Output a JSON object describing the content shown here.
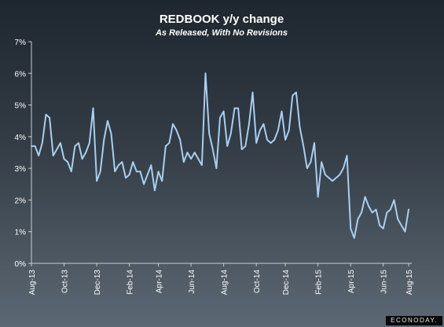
{
  "chart_data": {
    "type": "line",
    "title": "REDBOOK y/y change",
    "subtitle": "As Released, With No Revisions",
    "xlabel": "",
    "ylabel": "",
    "ylim": [
      0,
      7
    ],
    "y_ticks": [
      "0%",
      "1%",
      "2%",
      "3%",
      "4%",
      "5%",
      "6%",
      "7%"
    ],
    "x_ticks": [
      {
        "label": "Aug-13",
        "index": 0
      },
      {
        "label": "Oct-13",
        "index": 9
      },
      {
        "label": "Dec-13",
        "index": 18
      },
      {
        "label": "Feb-14",
        "index": 27
      },
      {
        "label": "Apr-14",
        "index": 35
      },
      {
        "label": "Jun-14",
        "index": 44
      },
      {
        "label": "Aug-14",
        "index": 53
      },
      {
        "label": "Oct-14",
        "index": 62
      },
      {
        "label": "Dec-14",
        "index": 70
      },
      {
        "label": "Feb-15",
        "index": 79
      },
      {
        "label": "Apr-15",
        "index": 88
      },
      {
        "label": "Jun-15",
        "index": 97
      },
      {
        "label": "Aug-15",
        "index": 104
      }
    ],
    "grid": false,
    "line_color": "#a8cff0",
    "series": [
      {
        "values": [
          3.7,
          3.7,
          3.4,
          3.8,
          4.7,
          4.6,
          3.4,
          3.6,
          3.8,
          3.3,
          3.2,
          2.9,
          3.7,
          3.8,
          3.3,
          3.5,
          3.8,
          4.9,
          2.6,
          2.9,
          3.9,
          4.5,
          4.1,
          2.9,
          3.1,
          3.2,
          2.7,
          2.8,
          3.2,
          2.9,
          2.9,
          2.5,
          2.8,
          3.1,
          2.3,
          2.9,
          2.6,
          3.7,
          3.8,
          4.4,
          4.2,
          3.9,
          3.2,
          3.5,
          3.3,
          3.5,
          3.3,
          3.1,
          6.0,
          4.1,
          3.6,
          3.0,
          4.6,
          4.8,
          3.7,
          4.1,
          4.9,
          4.9,
          3.6,
          3.7,
          4.4,
          5.4,
          3.8,
          4.2,
          4.4,
          3.9,
          3.8,
          3.9,
          4.2,
          4.8,
          3.9,
          4.2,
          5.3,
          5.4,
          4.3,
          3.7,
          3.0,
          3.2,
          3.8,
          2.1,
          3.2,
          2.8,
          2.7,
          2.6,
          2.7,
          2.8,
          3.0,
          3.4,
          1.1,
          0.8,
          1.4,
          1.6,
          2.1,
          1.8,
          1.6,
          1.7,
          1.2,
          1.1,
          1.6,
          1.7,
          2.0,
          1.4,
          1.2,
          1.0,
          1.7
        ]
      }
    ]
  },
  "brand": {
    "label": "ECONODAY."
  }
}
